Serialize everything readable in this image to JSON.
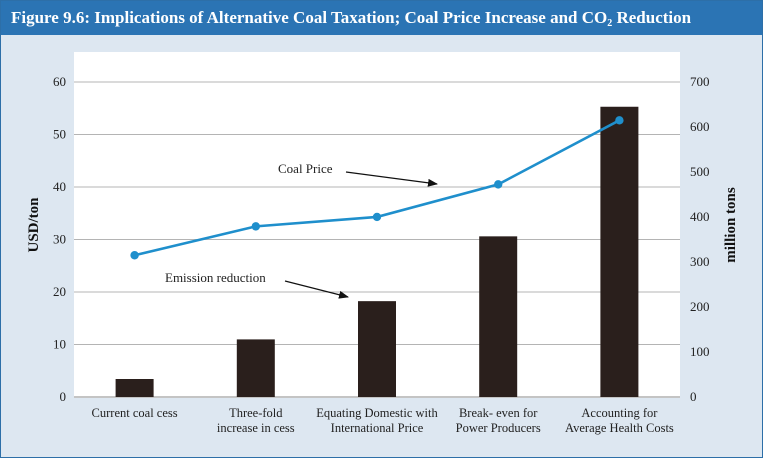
{
  "title": {
    "main": "Figure 9.6:  Implications of Alternative Coal Taxation; Coal Price Increase and CO",
    "sub": "2",
    "tail": " Reduction"
  },
  "colors": {
    "header": "#2b74b4",
    "bar": "#2a1f1c",
    "line": "#1f8fcc"
  },
  "annotations": {
    "coal_price": "Coal Price",
    "emission": "Emission reduction"
  },
  "chart_data": {
    "type": "bar+line",
    "categories": [
      [
        "Current coal cess"
      ],
      [
        "Three-fold",
        "increase in cess"
      ],
      [
        "Equating Domestic with",
        "International Price"
      ],
      [
        "Break- even for",
        "Power Producers"
      ],
      [
        "Accounting for",
        "Average Health Costs"
      ]
    ],
    "ylabel_left": "USD/ton",
    "ylabel_right": "million tons",
    "ylim_left": [
      0,
      60
    ],
    "ylim_right": [
      0,
      700
    ],
    "yticks_left": [
      0,
      10,
      20,
      30,
      40,
      50,
      60
    ],
    "yticks_right": [
      0,
      100,
      200,
      300,
      400,
      500,
      600,
      700
    ],
    "grid": true,
    "series": [
      {
        "name": "Emission reduction",
        "type": "bar",
        "axis": "right",
        "values": [
          40,
          128,
          213,
          357,
          645
        ]
      },
      {
        "name": "Coal Price",
        "type": "line",
        "axis": "left",
        "values": [
          27,
          32.5,
          34.3,
          40.5,
          52.7
        ]
      }
    ]
  }
}
